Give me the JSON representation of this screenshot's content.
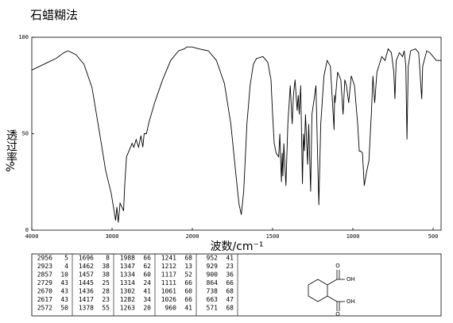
{
  "chart_data": {
    "type": "line",
    "title": "石蜡糊法",
    "y_label": "透过率",
    "y_unit_label": "%",
    "x_label": "波数/cm⁻¹",
    "x": [
      4000,
      3900,
      3800,
      3700,
      3600,
      3550,
      3450,
      3350,
      3250,
      3150,
      3080,
      3010,
      2975,
      2956,
      2940,
      2923,
      2900,
      2857,
      2840,
      2820,
      2780,
      2750,
      2729,
      2700,
      2670,
      2640,
      2617,
      2600,
      2572,
      2540,
      2470,
      2370,
      2270,
      2170,
      2100,
      2070,
      2000,
      1960,
      1900,
      1850,
      1800,
      1760,
      1730,
      1710,
      1695,
      1680,
      1660,
      1640,
      1620,
      1600,
      1560,
      1530,
      1510,
      1500,
      1490,
      1478,
      1462,
      1455,
      1445,
      1440,
      1436,
      1430,
      1417,
      1405,
      1390,
      1378,
      1370,
      1360,
      1347,
      1340,
      1334,
      1325,
      1314,
      1308,
      1302,
      1295,
      1282,
      1275,
      1263,
      1255,
      1241,
      1230,
      1220,
      1212,
      1200,
      1180,
      1160,
      1140,
      1117,
      1114,
      1111,
      1095,
      1075,
      1061,
      1050,
      1040,
      1026,
      1010,
      990,
      970,
      960,
      952,
      940,
      929,
      915,
      900,
      885,
      875,
      864,
      850,
      820,
      800,
      780,
      760,
      745,
      738,
      730,
      710,
      690,
      680,
      670,
      663,
      655,
      640,
      610,
      590,
      571,
      565,
      540,
      520,
      500,
      480,
      450
    ],
    "values": [
      83,
      85,
      87,
      89,
      92,
      93,
      91,
      86,
      74,
      49,
      31,
      19,
      10,
      5,
      12,
      4,
      14,
      10,
      25,
      38,
      42,
      45,
      43,
      47,
      43,
      49,
      43,
      50,
      50,
      56,
      66,
      78,
      88,
      93,
      94,
      95,
      95,
      94,
      93,
      88,
      76,
      55,
      30,
      14,
      8,
      20,
      55,
      75,
      86,
      89,
      90,
      87,
      78,
      60,
      45,
      40,
      38,
      50,
      25,
      40,
      28,
      45,
      23,
      55,
      75,
      55,
      70,
      78,
      62,
      70,
      60,
      75,
      24,
      50,
      41,
      60,
      34,
      55,
      20,
      60,
      68,
      75,
      40,
      13,
      55,
      80,
      88,
      85,
      52,
      70,
      66,
      82,
      78,
      60,
      78,
      75,
      66,
      80,
      75,
      55,
      41,
      41,
      40,
      23,
      30,
      36,
      60,
      80,
      66,
      82,
      90,
      88,
      94,
      92,
      82,
      68,
      88,
      92,
      90,
      93,
      85,
      47,
      85,
      93,
      94,
      92,
      68,
      85,
      93,
      92,
      90,
      88,
      88
    ],
    "color": "#000000",
    "xlim": [
      4000,
      450
    ],
    "xticks": [
      4000,
      3000,
      2000,
      1500,
      1000,
      500
    ],
    "ylim": [
      0,
      100
    ],
    "yticks": [
      0,
      50,
      100
    ]
  },
  "peak_table": [
    [
      [
        2956,
        5
      ],
      [
        2923,
        4
      ],
      [
        2857,
        10
      ],
      [
        2729,
        43
      ],
      [
        2670,
        43
      ],
      [
        2617,
        43
      ],
      [
        2572,
        50
      ]
    ],
    [
      [
        1696,
        8
      ],
      [
        1462,
        38
      ],
      [
        1457,
        38
      ],
      [
        1445,
        25
      ],
      [
        1436,
        28
      ],
      [
        1417,
        23
      ],
      [
        1378,
        55
      ]
    ],
    [
      [
        1988,
        66
      ],
      [
        1347,
        62
      ],
      [
        1334,
        60
      ],
      [
        1314,
        24
      ],
      [
        1302,
        41
      ],
      [
        1282,
        34
      ],
      [
        1263,
        20
      ]
    ],
    [
      [
        1241,
        68
      ],
      [
        1212,
        13
      ],
      [
        1117,
        52
      ],
      [
        1111,
        66
      ],
      [
        1061,
        60
      ],
      [
        1026,
        66
      ],
      [
        960,
        41
      ]
    ],
    [
      [
        952,
        41
      ],
      [
        929,
        23
      ],
      [
        900,
        36
      ],
      [
        864,
        66
      ],
      [
        738,
        68
      ],
      [
        663,
        47
      ],
      [
        571,
        68
      ]
    ]
  ],
  "structure_labels": [
    "O",
    "OH",
    "O",
    "OH"
  ]
}
